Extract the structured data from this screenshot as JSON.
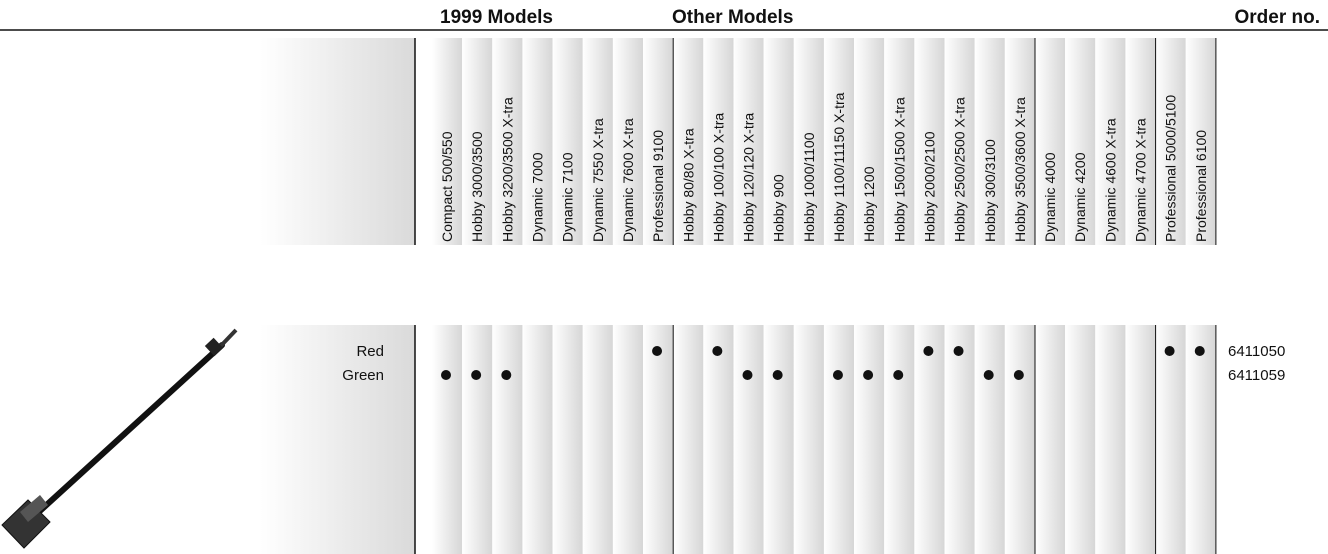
{
  "header": {
    "group_1999": "1999 Models",
    "group_other": "Other Models",
    "order": "Order no."
  },
  "columns": [
    "Compact 500/550",
    "Hobby 3000/3500",
    "Hobby 3200/3500 X-tra",
    "Dynamic 7000",
    "Dynamic 7100",
    "Dynamic 7550 X-tra",
    "Dynamic 7600 X-tra",
    "Professional 9100",
    "Hobby 80/80 X-tra",
    "Hobby 100/100 X-tra",
    "Hobby 120/120 X-tra",
    "Hobby 900",
    "Hobby 1000/1100",
    "Hobby 1100/11150 X-tra",
    "Hobby 1200",
    "Hobby 1500/1500 X-tra",
    "Hobby 2000/2100",
    "Hobby 2500/2500 X-tra",
    "Hobby 300/3100",
    "Hobby 3500/3600 X-tra",
    "Dynamic 4000",
    "Dynamic 4200",
    "Dynamic 4600 X-tra",
    "Dynamic 4700 X-tra",
    "Professional 5000/5100",
    "Professional 6100"
  ],
  "rows": [
    {
      "label": "Red",
      "order": "6411050",
      "fits": [
        false,
        false,
        false,
        false,
        false,
        false,
        false,
        true,
        false,
        true,
        false,
        false,
        false,
        false,
        false,
        false,
        true,
        true,
        false,
        false,
        false,
        false,
        false,
        false,
        true,
        true
      ]
    },
    {
      "label": "Green",
      "order": "6411059",
      "fits": [
        true,
        true,
        true,
        false,
        false,
        false,
        false,
        false,
        false,
        false,
        true,
        true,
        false,
        true,
        true,
        true,
        false,
        false,
        true,
        true,
        false,
        false,
        false,
        false,
        false,
        false
      ]
    }
  ]
}
